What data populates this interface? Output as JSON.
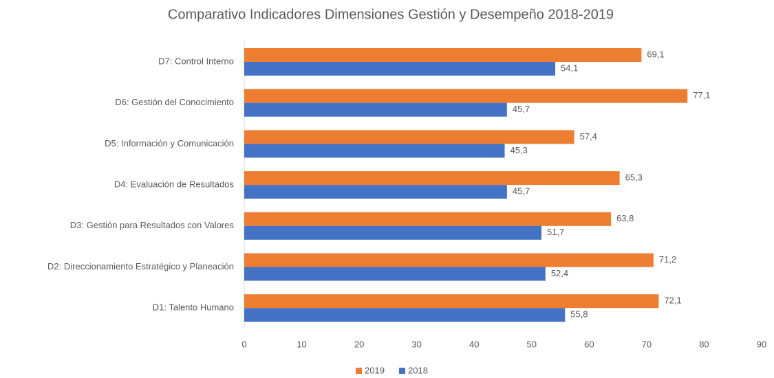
{
  "chart_data": {
    "type": "bar",
    "orientation": "horizontal",
    "title": "Comparativo Indicadores Dimensiones Gestión y Desempeño 2018-2019",
    "categories": [
      "D7: Control Interno",
      "D6: Gestión del Conocimiento",
      "D5: Información y Comunicación",
      "D4: Evaluación de Resultados",
      "D3: Gestión para Resultados con Valores",
      "D2: Direccionamiento Estratégico y Planeación",
      "D1: Talento Humano"
    ],
    "series": [
      {
        "name": "2019",
        "color": "#ed7d31",
        "values": [
          69.1,
          77.1,
          57.4,
          65.3,
          63.8,
          71.2,
          72.1
        ],
        "value_labels": [
          "69,1",
          "77,1",
          "57,4",
          "65,3",
          "63,8",
          "71,2",
          "72,1"
        ]
      },
      {
        "name": "2018",
        "color": "#4472c4",
        "values": [
          54.1,
          45.7,
          45.3,
          45.7,
          51.7,
          52.4,
          55.8
        ],
        "value_labels": [
          "54,1",
          "45,7",
          "45,3",
          "45,7",
          "51,7",
          "52,4",
          "55,8"
        ]
      }
    ],
    "xlim": [
      0,
      90
    ],
    "xticks": [
      0,
      10,
      20,
      30,
      40,
      50,
      60,
      70,
      80,
      90
    ],
    "grid": false,
    "legend": "bottom"
  }
}
